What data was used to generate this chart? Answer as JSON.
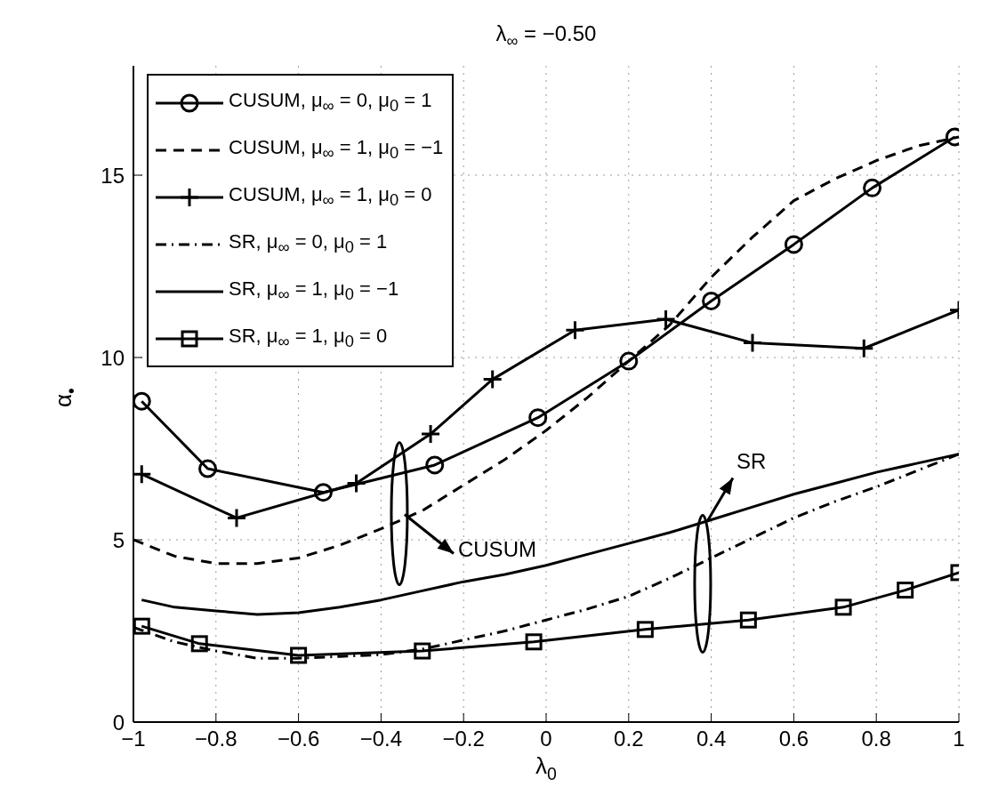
{
  "chart_data": {
    "type": "line",
    "title": "λ$_{∞}$ = −0.50",
    "xlabel": "λ$_{0}$",
    "ylabel": "α$_{•}$",
    "xlim": [
      -1,
      1
    ],
    "xticks": [
      {
        "value": -1,
        "label": "−1"
      },
      {
        "value": -0.8,
        "label": "−0.8"
      },
      {
        "value": -0.6,
        "label": "−0.6"
      },
      {
        "value": -0.4,
        "label": "−0.4"
      },
      {
        "value": -0.2,
        "label": "−0.2"
      },
      0,
      0.2,
      0.4,
      0.6,
      0.8,
      1
    ],
    "ylim": [
      0,
      18
    ],
    "yticks": [
      0,
      5,
      10,
      15
    ],
    "grid": true,
    "legend": "top left",
    "series": [
      {
        "name": "CUSUM, μ$_{∞}$ = 0, μ$_{0}$ = 1",
        "color": "#000000",
        "marker": "circle",
        "line_style": "solid",
        "x": [
          -0.98,
          -0.82,
          -0.54,
          -0.27,
          -0.02,
          0.2,
          0.4,
          0.6,
          0.79,
          0.99
        ],
        "values": [
          8.8,
          6.95,
          6.3,
          7.05,
          8.35,
          9.9,
          11.55,
          13.1,
          14.65,
          16.05
        ]
      },
      {
        "name": "CUSUM, μ$_{∞}$ = 1, μ$_{0}$ = −1",
        "color": "#000000",
        "marker": "none",
        "line_style": "dashed",
        "x": [
          -1,
          -0.9,
          -0.8,
          -0.7,
          -0.6,
          -0.5,
          -0.4,
          -0.3,
          -0.2,
          -0.1,
          0,
          0.1,
          0.2,
          0.3,
          0.4,
          0.5,
          0.6,
          0.7,
          0.8,
          0.9,
          1
        ],
        "values": [
          5.0,
          4.55,
          4.35,
          4.35,
          4.5,
          4.85,
          5.3,
          5.8,
          6.5,
          7.2,
          8.0,
          8.9,
          9.9,
          10.9,
          12.2,
          13.3,
          14.3,
          14.9,
          15.4,
          15.8,
          16.05
        ]
      },
      {
        "name": "CUSUM, μ$_{∞}$ = 1, μ$_{0}$ = 0",
        "color": "#000000",
        "marker": "cross",
        "line_style": "solid",
        "x": [
          -0.98,
          -0.75,
          -0.46,
          -0.28,
          -0.13,
          0.07,
          0.29,
          0.5,
          0.77,
          1
        ],
        "values": [
          6.8,
          5.6,
          6.55,
          7.9,
          9.4,
          10.75,
          11.05,
          10.4,
          10.25,
          11.3
        ]
      },
      {
        "name": "SR, μ$_{∞}$ = 0, μ$_{0}$ = 1",
        "color": "#000000",
        "marker": "none",
        "line_style": "dashdot",
        "x": [
          -1,
          -0.9,
          -0.8,
          -0.7,
          -0.6,
          -0.5,
          -0.4,
          -0.3,
          -0.2,
          -0.1,
          0,
          0.1,
          0.2,
          0.3,
          0.4,
          0.5,
          0.6,
          0.7,
          0.8,
          0.9,
          1
        ],
        "values": [
          2.6,
          2.2,
          1.95,
          1.75,
          1.75,
          1.8,
          1.85,
          2.0,
          2.25,
          2.5,
          2.8,
          3.1,
          3.45,
          3.95,
          4.5,
          5.05,
          5.6,
          6.05,
          6.45,
          6.9,
          7.35
        ]
      },
      {
        "name": "SR, μ$_{∞}$ = 1, μ$_{0}$ = −1",
        "color": "#000000",
        "marker": "none",
        "line_style": "solid",
        "x": [
          -0.98,
          -0.9,
          -0.8,
          -0.7,
          -0.6,
          -0.5,
          -0.4,
          -0.3,
          -0.2,
          -0.1,
          0,
          0.1,
          0.2,
          0.3,
          0.4,
          0.5,
          0.6,
          0.7,
          0.8,
          0.9,
          1
        ],
        "values": [
          3.35,
          3.15,
          3.05,
          2.95,
          3.0,
          3.15,
          3.35,
          3.6,
          3.85,
          4.05,
          4.3,
          4.6,
          4.9,
          5.2,
          5.55,
          5.9,
          6.25,
          6.55,
          6.85,
          7.1,
          7.35
        ]
      },
      {
        "name": "SR, μ$_{∞}$ = 1, μ$_{0}$ = 0",
        "color": "#000000",
        "marker": "square",
        "line_style": "solid",
        "x": [
          -0.98,
          -0.84,
          -0.6,
          -0.3,
          -0.03,
          0.24,
          0.49,
          0.72,
          0.87,
          1
        ],
        "values": [
          2.63,
          2.15,
          1.83,
          1.95,
          2.2,
          2.54,
          2.8,
          3.15,
          3.62,
          4.1
        ]
      }
    ],
    "annotations": [
      {
        "text": "CUSUM",
        "x": -0.36,
        "y": 5.5
      },
      {
        "text": "SR",
        "x": 0.39,
        "y": 5.5
      }
    ]
  }
}
